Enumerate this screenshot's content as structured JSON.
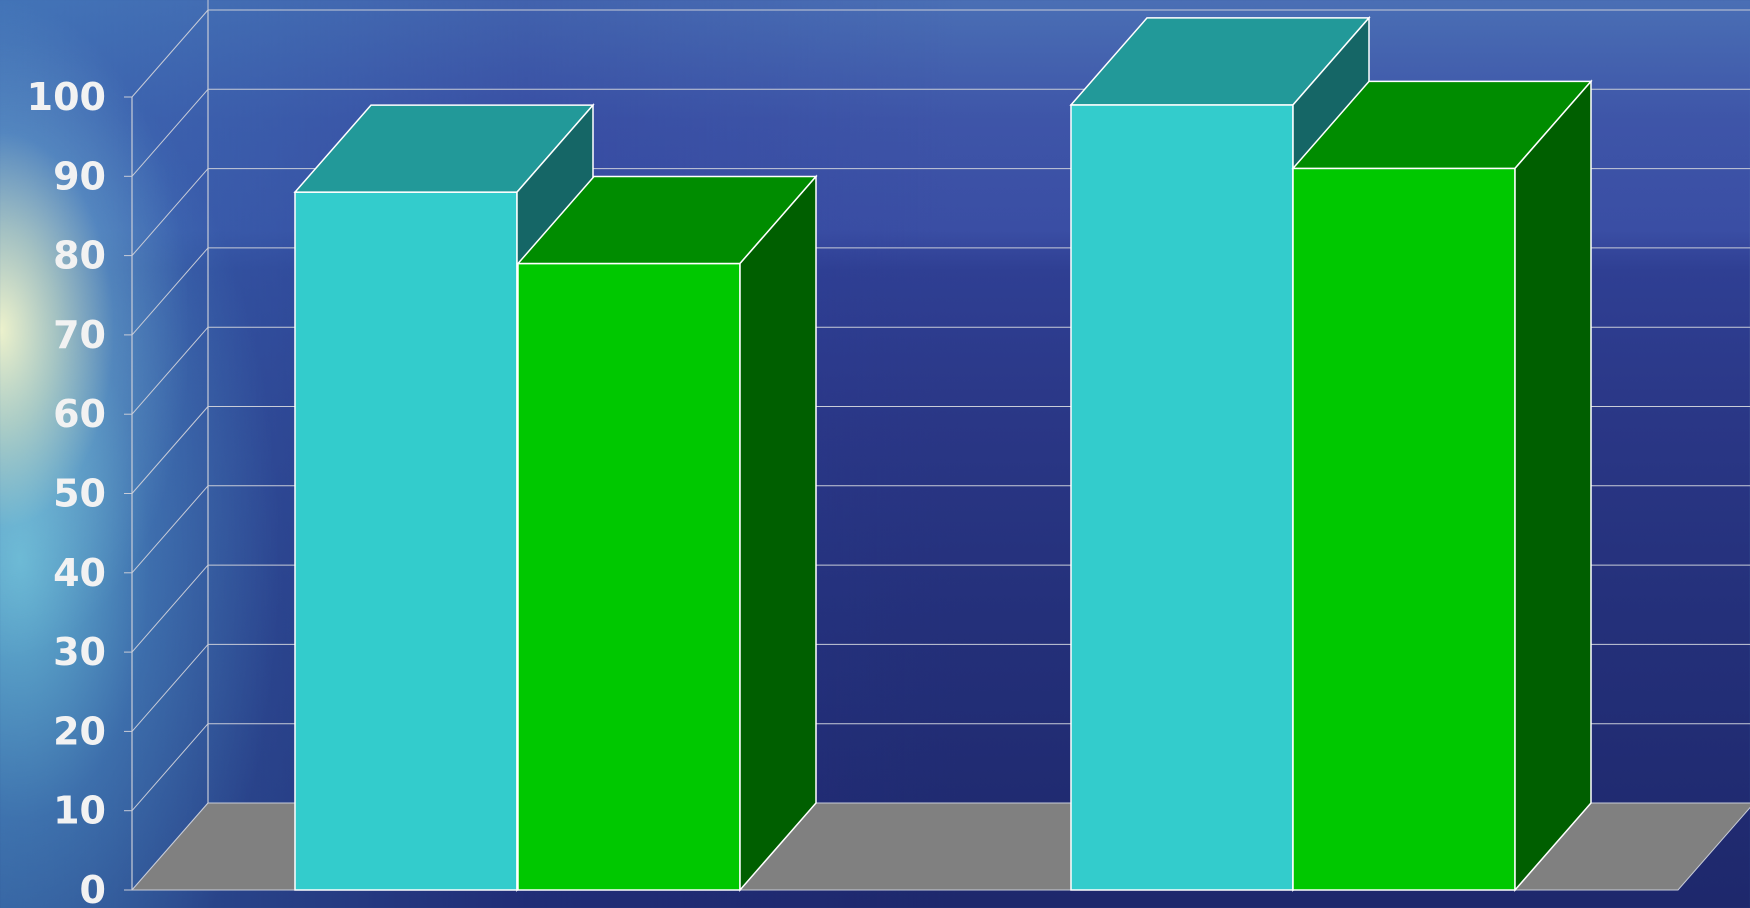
{
  "chart_data": {
    "type": "bar",
    "categories": [
      "",
      ""
    ],
    "series": [
      {
        "values": [
          88,
          99
        ]
      },
      {
        "values": [
          79,
          91
        ]
      }
    ],
    "ylim": [
      0,
      100
    ],
    "yticks": [
      0,
      10,
      20,
      30,
      40,
      50,
      60,
      70,
      80,
      90,
      100
    ],
    "grid": true,
    "title": "",
    "xlabel": "",
    "ylabel": "",
    "three_d": true
  },
  "colors": {
    "series_front": [
      "#33cccc",
      "#00c800"
    ],
    "series_top": [
      "#229999",
      "#008c00"
    ],
    "series_side": [
      "#156666",
      "#005f00"
    ],
    "floor": "#808080",
    "grid": "#c8ccd8",
    "tick_label": "#f2f2f2"
  }
}
